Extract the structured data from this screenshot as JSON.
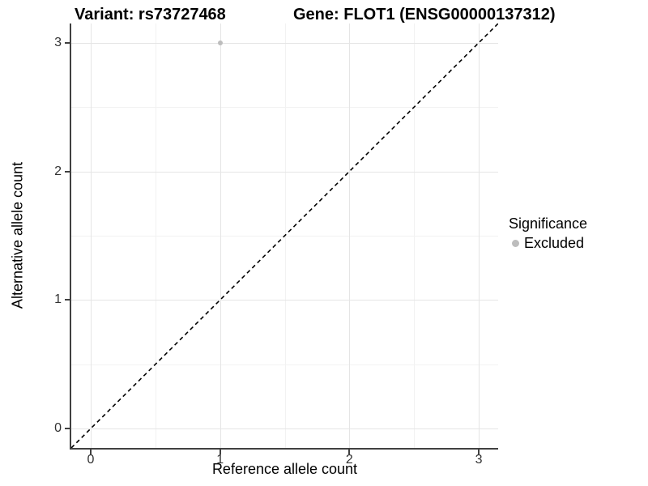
{
  "chart_data": {
    "type": "scatter",
    "title_left": "Variant: rs73727468",
    "title_right": "Gene: FLOT1 (ENSG00000137312)",
    "xlabel": "Reference allele count",
    "ylabel": "Alternative allele count",
    "xlim": [
      -0.15,
      3.15
    ],
    "ylim": [
      -0.15,
      3.15
    ],
    "x_ticks": [
      0,
      1,
      2,
      3
    ],
    "y_ticks": [
      0,
      1,
      2,
      3
    ],
    "x_minor_ticks": [
      0.5,
      1.5,
      2.5
    ],
    "y_minor_ticks": [
      0.5,
      1.5,
      2.5
    ],
    "grid": true,
    "series": [
      {
        "name": "Excluded",
        "color": "#bdbdbd",
        "points": [
          {
            "x": 1,
            "y": 3
          }
        ]
      }
    ],
    "reference_line": {
      "slope": 1,
      "intercept": 0,
      "style": "dashed",
      "color": "#000000"
    },
    "legend": {
      "title": "Significance",
      "position": "right",
      "items": [
        {
          "label": "Excluded",
          "color": "#bdbdbd"
        }
      ]
    },
    "colors": {
      "axis": "#404040",
      "grid_major": "#e5e5e5",
      "grid_minor": "#f2f2f2",
      "tick_label": "#333333",
      "text": "#000000",
      "background": "#ffffff"
    }
  }
}
